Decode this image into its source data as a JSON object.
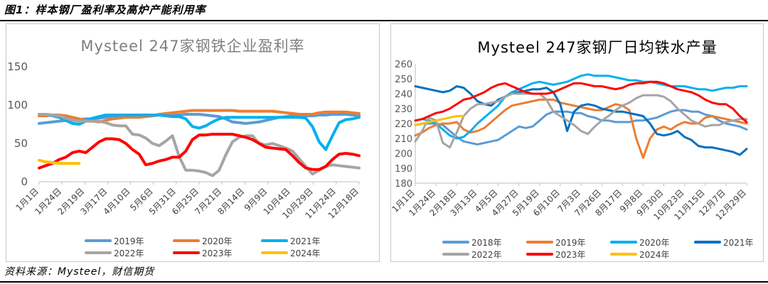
{
  "figure": {
    "title": "图1：样本钢厂盈利率及高炉产能利用率",
    "source": "资料来源：Mysteel，财信期货"
  },
  "chart_data": [
    {
      "type": "line",
      "title": "Mysteel 247家钢铁企业盈利率",
      "ylim": [
        0,
        150
      ],
      "yticks": [
        0,
        50,
        100,
        150
      ],
      "grid": false,
      "legend_position": "bottom",
      "x_tick_labels": [
        "1月1日",
        "1月24日",
        "2月19日",
        "3月17日",
        "4月10日",
        "5月6日",
        "5月31日",
        "6月25日",
        "7月21日",
        "8月14日",
        "9月9日",
        "10月4日",
        "10月29日",
        "11月24日",
        "12月18日"
      ],
      "x_count": 49,
      "series": [
        {
          "name": "2019年",
          "color": "#5b9bd5",
          "width": 4,
          "x_start": 0,
          "values": [
            76,
            77,
            78,
            79,
            80,
            80,
            81,
            82,
            82,
            83,
            84,
            85,
            85,
            86,
            86,
            86,
            86,
            86,
            87,
            87,
            87,
            87,
            88,
            88,
            88,
            87,
            86,
            85,
            82,
            78,
            77,
            76,
            77,
            78,
            80,
            82,
            84,
            85,
            86,
            86,
            86,
            86,
            87,
            87,
            88,
            88,
            88,
            87,
            86
          ]
        },
        {
          "name": "2020年",
          "color": "#ed7d31",
          "width": 4,
          "x_start": 0,
          "values": [
            86,
            86,
            87,
            87,
            86,
            84,
            82,
            80,
            79,
            78,
            80,
            82,
            83,
            84,
            84,
            84,
            85,
            86,
            88,
            89,
            90,
            91,
            92,
            93,
            93,
            93,
            93,
            93,
            93,
            93,
            92,
            92,
            92,
            92,
            92,
            92,
            91,
            90,
            89,
            88,
            88,
            88,
            90,
            91,
            91,
            91,
            91,
            90,
            89
          ]
        },
        {
          "name": "2021年",
          "color": "#00b0f0",
          "width": 4,
          "x_start": 0,
          "values": [
            88,
            88,
            86,
            84,
            80,
            76,
            75,
            79,
            83,
            85,
            87,
            87,
            87,
            87,
            87,
            87,
            87,
            87,
            87,
            86,
            85,
            85,
            82,
            72,
            70,
            73,
            78,
            82,
            84,
            84,
            84,
            84,
            84,
            84,
            84,
            84,
            84,
            84,
            84,
            84,
            83,
            72,
            52,
            42,
            60,
            77,
            81,
            82,
            84
          ]
        },
        {
          "name": "2022年",
          "color": "#a5a5a5",
          "width": 4,
          "x_start": 0,
          "values": [
            88,
            88,
            87,
            86,
            83,
            80,
            79,
            79,
            79,
            79,
            77,
            74,
            73,
            73,
            62,
            61,
            57,
            50,
            47,
            53,
            60,
            33,
            15,
            15,
            14,
            12,
            8,
            15,
            35,
            52,
            58,
            60,
            60,
            50,
            48,
            50,
            47,
            44,
            40,
            30,
            20,
            10,
            15,
            20,
            22,
            21,
            20,
            19,
            18
          ]
        },
        {
          "name": "2023年",
          "color": "#ff0000",
          "width": 4,
          "x_start": 0,
          "values": [
            18,
            21,
            24,
            29,
            32,
            38,
            40,
            38,
            45,
            52,
            56,
            56,
            55,
            50,
            42,
            36,
            22,
            24,
            27,
            29,
            32,
            32,
            40,
            55,
            61,
            61,
            62,
            62,
            62,
            62,
            60,
            58,
            55,
            50,
            45,
            44,
            43,
            42,
            34,
            25,
            18,
            16,
            16,
            20,
            29,
            36,
            37,
            36,
            34
          ]
        },
        {
          "name": "2024年",
          "color": "#ffc000",
          "width": 4,
          "x_start": 0,
          "values": [
            28,
            26,
            25,
            24,
            24,
            24,
            24
          ]
        }
      ]
    },
    {
      "type": "line",
      "title": "Mysteel 247家钢厂日均铁水产量",
      "ylim": [
        180,
        260
      ],
      "yticks": [
        180,
        190,
        200,
        210,
        220,
        230,
        240,
        250,
        260
      ],
      "grid": false,
      "legend_position": "bottom",
      "x_tick_labels": [
        "1月1日",
        "1月24日",
        "2月18日",
        "3月13日",
        "4月5日",
        "4月27日",
        "5月19日",
        "6月10日",
        "7月3日",
        "7月26日",
        "8月17日",
        "9月8日",
        "9月30日",
        "10月23日",
        "11月15日",
        "12月7日",
        "12月29日"
      ],
      "x_count": 49,
      "series": [
        {
          "name": "2018年",
          "color": "#5b9bd5",
          "width": 3,
          "x_start": 0,
          "values": [
            219,
            220,
            220,
            220,
            219,
            215,
            211,
            208,
            207,
            206,
            207,
            208,
            209,
            212,
            215,
            218,
            217,
            218,
            222,
            226,
            228,
            228,
            228,
            227,
            227,
            225,
            224,
            222,
            222,
            221,
            221,
            221,
            222,
            222,
            223,
            224,
            226,
            228,
            229,
            229,
            228,
            228,
            226,
            225,
            222,
            220,
            219,
            218,
            216
          ]
        },
        {
          "name": "2019年",
          "color": "#ed7d31",
          "width": 3,
          "x_start": 0,
          "values": [
            212,
            214,
            217,
            219,
            220,
            220,
            221,
            216,
            214,
            215,
            217,
            221,
            225,
            229,
            232,
            233,
            234,
            235,
            236,
            236,
            236,
            234,
            233,
            232,
            231,
            230,
            229,
            229,
            231,
            233,
            232,
            229,
            210,
            197,
            210,
            216,
            218,
            216,
            219,
            221,
            220,
            220,
            224,
            225,
            224,
            223,
            222,
            221,
            220
          ]
        },
        {
          "name": "2020年",
          "color": "#00b0f0",
          "width": 3,
          "x_start": 0,
          "values": [
            222,
            223,
            222,
            220,
            216,
            212,
            210,
            211,
            215,
            220,
            224,
            228,
            232,
            238,
            241,
            243,
            245,
            247,
            248,
            247,
            246,
            247,
            248,
            250,
            252,
            253,
            252,
            252,
            252,
            251,
            250,
            249,
            249,
            248,
            248,
            247,
            246,
            245,
            245,
            245,
            244,
            243,
            243,
            242,
            243,
            244,
            244,
            245,
            245
          ]
        },
        {
          "name": "2021年",
          "color": "#0070c0",
          "width": 3,
          "x_start": 0,
          "values": [
            245,
            244,
            243,
            242,
            241,
            242,
            245,
            244,
            240,
            235,
            233,
            232,
            236,
            238,
            240,
            241,
            242,
            243,
            243,
            244,
            241,
            233,
            215,
            228,
            232,
            233,
            232,
            230,
            229,
            228,
            228,
            227,
            226,
            225,
            220,
            213,
            212,
            213,
            215,
            211,
            209,
            205,
            204,
            204,
            203,
            202,
            201,
            199,
            203
          ]
        },
        {
          "name": "2022年",
          "color": "#a5a5a5",
          "width": 3,
          "x_start": 0,
          "values": [
            208,
            215,
            224,
            222,
            207,
            204,
            214,
            225,
            230,
            233,
            233,
            234,
            235,
            238,
            240,
            240,
            240,
            240,
            240,
            236,
            228,
            225,
            222,
            219,
            215,
            213,
            218,
            222,
            225,
            229,
            232,
            234,
            237,
            239,
            239,
            239,
            238,
            235,
            230,
            226,
            222,
            220,
            218,
            219,
            219,
            221,
            222,
            223,
            223
          ]
        },
        {
          "name": "2023年",
          "color": "#ff0000",
          "width": 3,
          "x_start": 0,
          "values": [
            222,
            223,
            225,
            227,
            228,
            230,
            233,
            236,
            237,
            239,
            241,
            244,
            246,
            247,
            245,
            243,
            241,
            240,
            240,
            240,
            241,
            243,
            245,
            247,
            247,
            246,
            245,
            245,
            244,
            243,
            244,
            246,
            247,
            247,
            248,
            248,
            247,
            245,
            243,
            242,
            241,
            239,
            236,
            234,
            233,
            233,
            230,
            225,
            221
          ]
        },
        {
          "name": "2024年",
          "color": "#ffc000",
          "width": 3,
          "x_start": 0,
          "values": [
            219,
            220,
            221,
            222,
            223,
            224,
            225,
            225
          ]
        }
      ]
    }
  ]
}
